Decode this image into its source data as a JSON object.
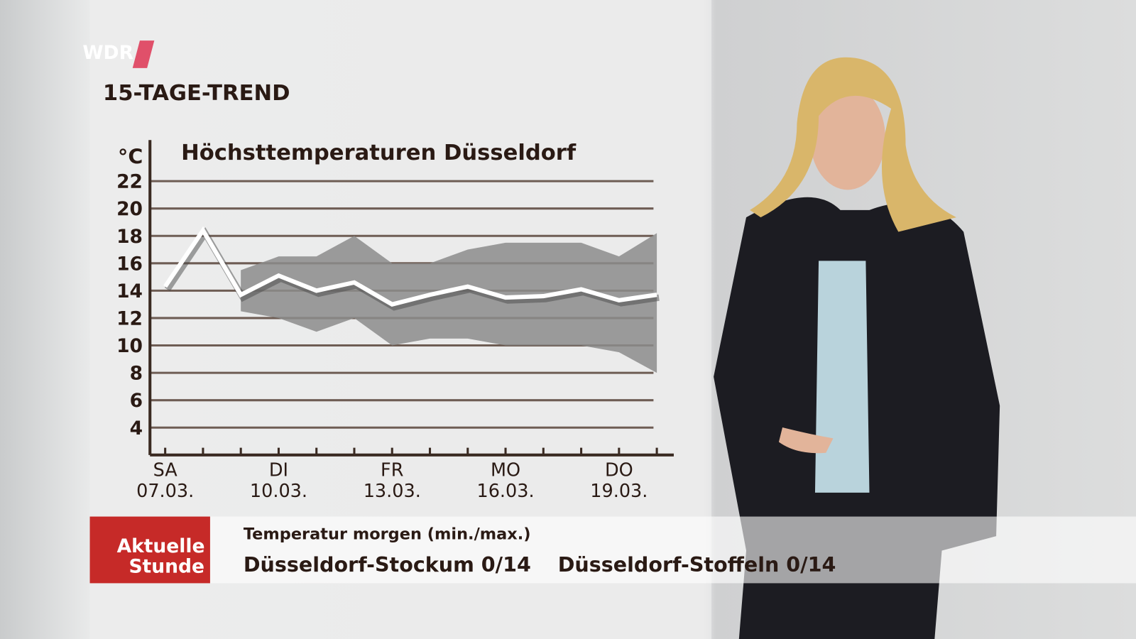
{
  "channel": "WDR",
  "section_title": "15-TAGE-TREND",
  "chart_data": {
    "type": "line",
    "title": "Höchsttemperaturen Düsseldorf",
    "y_label": "°C",
    "categories": [
      "SA",
      null,
      null,
      "DI",
      null,
      null,
      "FR",
      null,
      null,
      "MO",
      null,
      null,
      "DO",
      null
    ],
    "category_dates": [
      "07.03.",
      null,
      null,
      "10.03.",
      null,
      null,
      "13.03.",
      null,
      null,
      "16.03.",
      null,
      null,
      "19.03.",
      null
    ],
    "values": [
      14.3,
      18.4,
      13.7,
      15.1,
      14,
      14.6,
      13,
      13.7,
      14.3,
      13.5,
      13.6,
      14.1,
      13.3,
      13.7
    ],
    "color": "#ffffff",
    "band": {
      "color": "#8c8c8c",
      "upper": [
        null,
        null,
        15.5,
        16.5,
        16.5,
        18,
        16,
        16,
        17,
        17.5,
        17.5,
        17.5,
        16.5,
        18.2
      ],
      "lower": [
        null,
        null,
        12.5,
        12,
        11,
        12,
        10,
        10.5,
        10.5,
        10,
        10,
        10,
        9.5,
        8
      ]
    },
    "ylim": [
      2,
      25
    ],
    "yticks": [
      4,
      6,
      8,
      10,
      12,
      14,
      16,
      18,
      20,
      22
    ],
    "grid": true
  },
  "ticker": {
    "logo_lines": [
      "Aktuelle",
      "Stunde"
    ],
    "heading": "Temperatur morgen (min./max.)",
    "items": [
      "Düsseldorf-Stockum 0/14",
      "Düsseldorf-Stoffeln 0/14"
    ]
  }
}
